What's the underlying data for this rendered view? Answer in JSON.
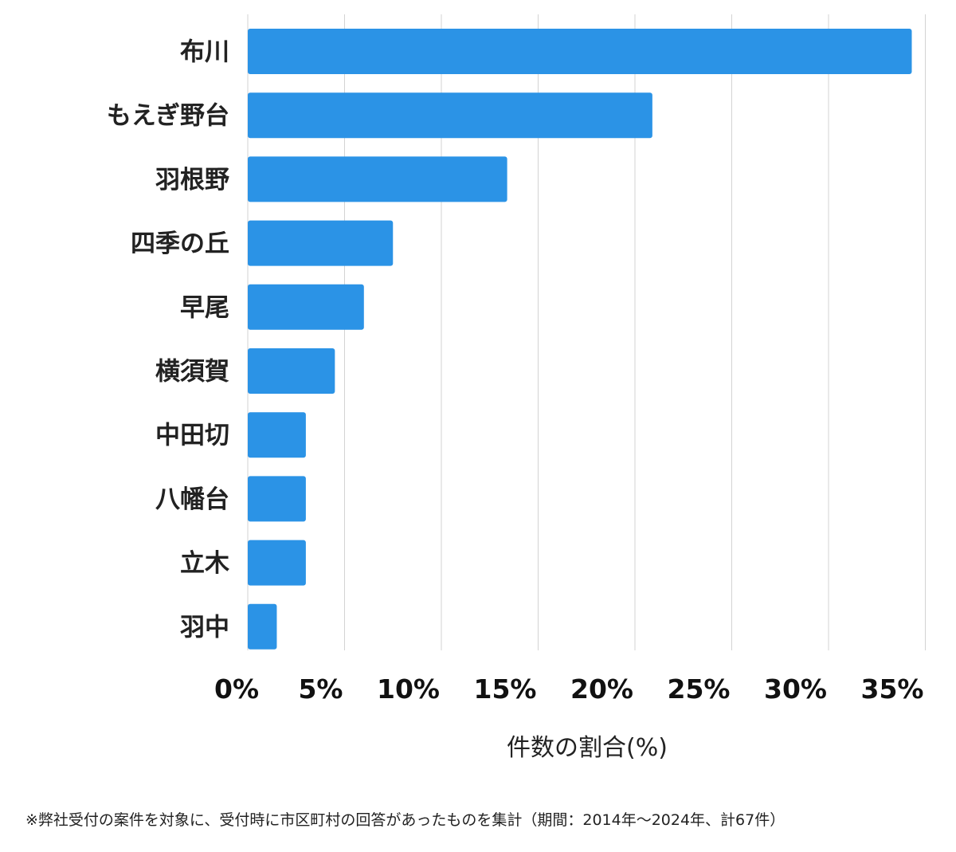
{
  "chart_data": {
    "type": "bar",
    "orientation": "horizontal",
    "categories": [
      "布川",
      "もえぎ野台",
      "羽根野",
      "四季の丘",
      "早尾",
      "横須賀",
      "中田切",
      "八幡台",
      "立木",
      "羽中"
    ],
    "values": [
      34.3,
      20.9,
      13.4,
      7.5,
      6.0,
      4.5,
      3.0,
      3.0,
      3.0,
      1.5
    ],
    "xlabel": "件数の割合(%)",
    "ylabel": "",
    "xlim": [
      0,
      35
    ],
    "xticks": [
      0,
      5,
      10,
      15,
      20,
      25,
      30,
      35
    ],
    "xtick_labels": [
      "0%",
      "5%",
      "10%",
      "15%",
      "20%",
      "25%",
      "30%",
      "35%"
    ],
    "grid": true,
    "bar_color": "#2b93e6",
    "grid_color": "#d3d3d3"
  },
  "footnote": "※弊社受付の案件を対象に、受付時に市区町村の回答があったものを集計（期間：2014年〜2024年、計67件）"
}
